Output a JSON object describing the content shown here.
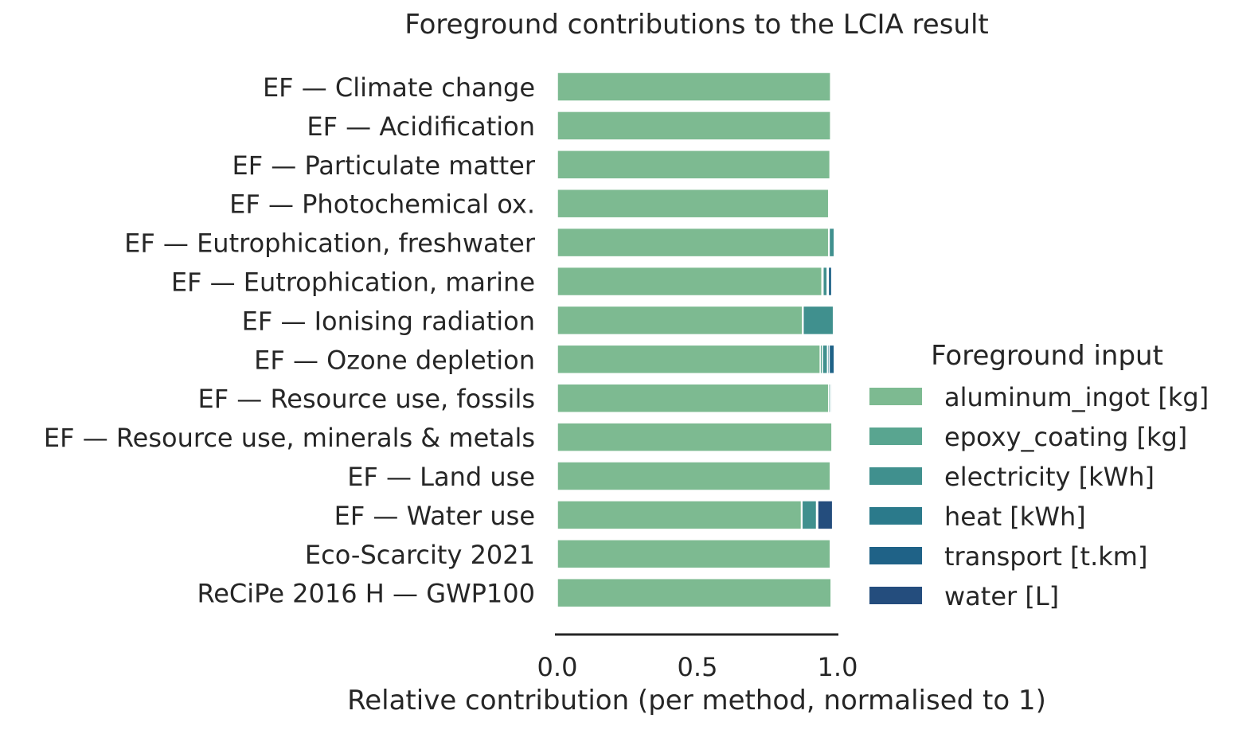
{
  "chart_data": {
    "type": "bar",
    "orientation": "horizontal",
    "stacked": true,
    "title": "Foreground contributions to the LCIA result",
    "xlabel": "Relative contribution (per method, normalised to 1)",
    "ylabel": "",
    "xlim": [
      0,
      1
    ],
    "xticks": [
      "0.0",
      "0.5",
      "1.0"
    ],
    "grid": false,
    "legend_position": "center-right",
    "legend_title": "Foreground input",
    "categories": [
      "EF — Climate change",
      "EF — Acidification",
      "EF — Particulate matter",
      "EF — Photochemical ox.",
      "EF — Eutrophication, freshwater",
      "EF — Eutrophication, marine",
      "EF — Ionising radiation",
      "EF — Ozone depletion",
      "EF — Resource use, fossils",
      "EF — Resource use, minerals & metals",
      "EF — Land use",
      "EF — Water use",
      "Eco-Scarcity 2021",
      "ReCiPe 2016 H — GWP100"
    ],
    "series": [
      {
        "name": "aluminum_ingot [kg]",
        "color": "#7dba91",
        "values": [
          0.975,
          0.975,
          0.973,
          0.968,
          0.968,
          0.944,
          0.875,
          0.938,
          0.968,
          0.98,
          0.974,
          0.871,
          0.974,
          0.977
        ]
      },
      {
        "name": "epoxy_coating [kg]",
        "color": "#59a590",
        "values": [
          0.0,
          0.003,
          0.002,
          0.003,
          0.002,
          0.004,
          0.002,
          0.008,
          0.006,
          0.0,
          0.003,
          0.002,
          0.003,
          0.0
        ]
      },
      {
        "name": "electricity [kWh]",
        "color": "#40908e",
        "values": [
          0.001,
          0.002,
          0.002,
          0.003,
          0.018,
          0.015,
          0.108,
          0.018,
          0.005,
          0.001,
          0.002,
          0.052,
          0.002,
          0.001
        ]
      },
      {
        "name": "heat [kWh]",
        "color": "#2b7a8b",
        "values": [
          0.0,
          0.001,
          0.001,
          0.001,
          0.004,
          0.004,
          0.002,
          0.006,
          0.001,
          0.0,
          0.001,
          0.001,
          0.001,
          0.0
        ]
      },
      {
        "name": "transport [t.km]",
        "color": "#1f6287",
        "values": [
          0.0,
          0.002,
          0.002,
          0.0,
          0.0,
          0.012,
          0.0,
          0.018,
          0.001,
          0.0,
          0.001,
          0.003,
          0.001,
          0.0
        ]
      },
      {
        "name": "water [L]",
        "color": "#244d7d",
        "values": [
          0.0,
          0.0,
          0.0,
          0.0,
          0.0,
          0.0,
          0.0,
          0.0,
          0.0,
          0.0,
          0.0,
          0.053,
          0.0,
          0.0
        ]
      }
    ]
  }
}
